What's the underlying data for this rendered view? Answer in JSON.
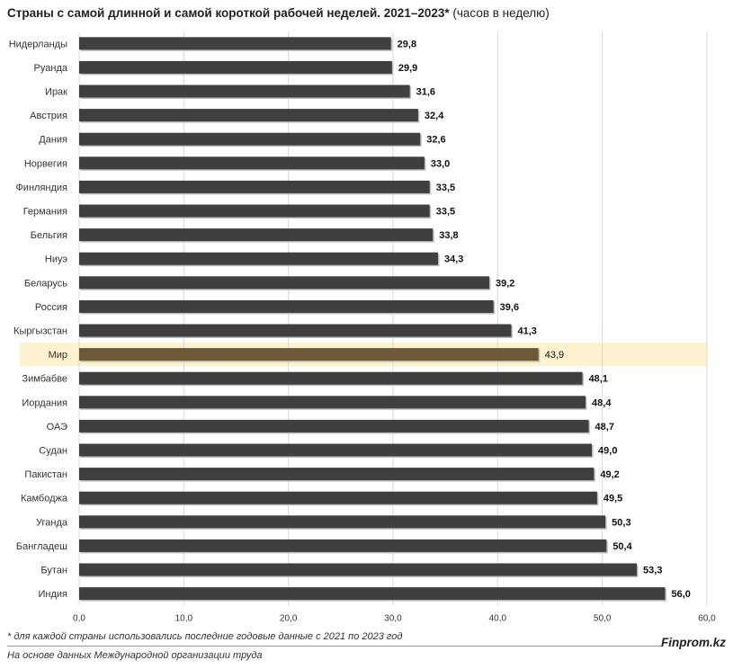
{
  "title_bold": "Страны с самой длинной и самой короткой рабочей неделей. 2021–2023*",
  "title_normal": "(часов в неделю)",
  "footnote": "* для каждой страны использовались последние годовые данные с 2021 по 2023 год",
  "source": "На основе данных Международной организации труда",
  "brand": "Finprom.kz",
  "chart_data": {
    "type": "bar",
    "orientation": "horizontal",
    "categories": [
      "Нидерланды",
      "Руанда",
      "Ирак",
      "Австрия",
      "Дания",
      "Норвегия",
      "Финляндия",
      "Германия",
      "Бельгия",
      "Ниуэ",
      "Беларусь",
      "Россия",
      "Кыргызстан",
      "Мир",
      "Зимбабве",
      "Иордания",
      "ОАЭ",
      "Судан",
      "Пакистан",
      "Камбоджа",
      "Уганда",
      "Бангладеш",
      "Бутан",
      "Индия"
    ],
    "values": [
      29.8,
      29.9,
      31.6,
      32.4,
      32.6,
      33.0,
      33.5,
      33.5,
      33.8,
      34.3,
      39.2,
      39.6,
      41.3,
      43.9,
      48.1,
      48.4,
      48.7,
      49.0,
      49.2,
      49.5,
      50.3,
      50.4,
      53.3,
      56.0
    ],
    "value_labels": [
      "29,8",
      "29,9",
      "31,6",
      "32,4",
      "32,6",
      "33,0",
      "33,5",
      "33,5",
      "33,8",
      "34,3",
      "39,2",
      "39,6",
      "41,3",
      "43,9",
      "48,1",
      "48,4",
      "48,7",
      "49,0",
      "49,2",
      "49,5",
      "50,3",
      "50,4",
      "53,3",
      "56,0"
    ],
    "highlight": "Мир",
    "xlim": [
      0,
      60
    ],
    "ticks": [
      0,
      10,
      20,
      30,
      40,
      50,
      60
    ],
    "tick_labels": [
      "0,0",
      "10,0",
      "20,0",
      "30,0",
      "40,0",
      "50,0",
      "60,0"
    ],
    "grid": true,
    "colors": {
      "bar": "#3f3f3f",
      "highlight_bar": "#6b5a35",
      "highlight_band": "#fdf1cf",
      "grid": "#d9d9d9"
    }
  }
}
